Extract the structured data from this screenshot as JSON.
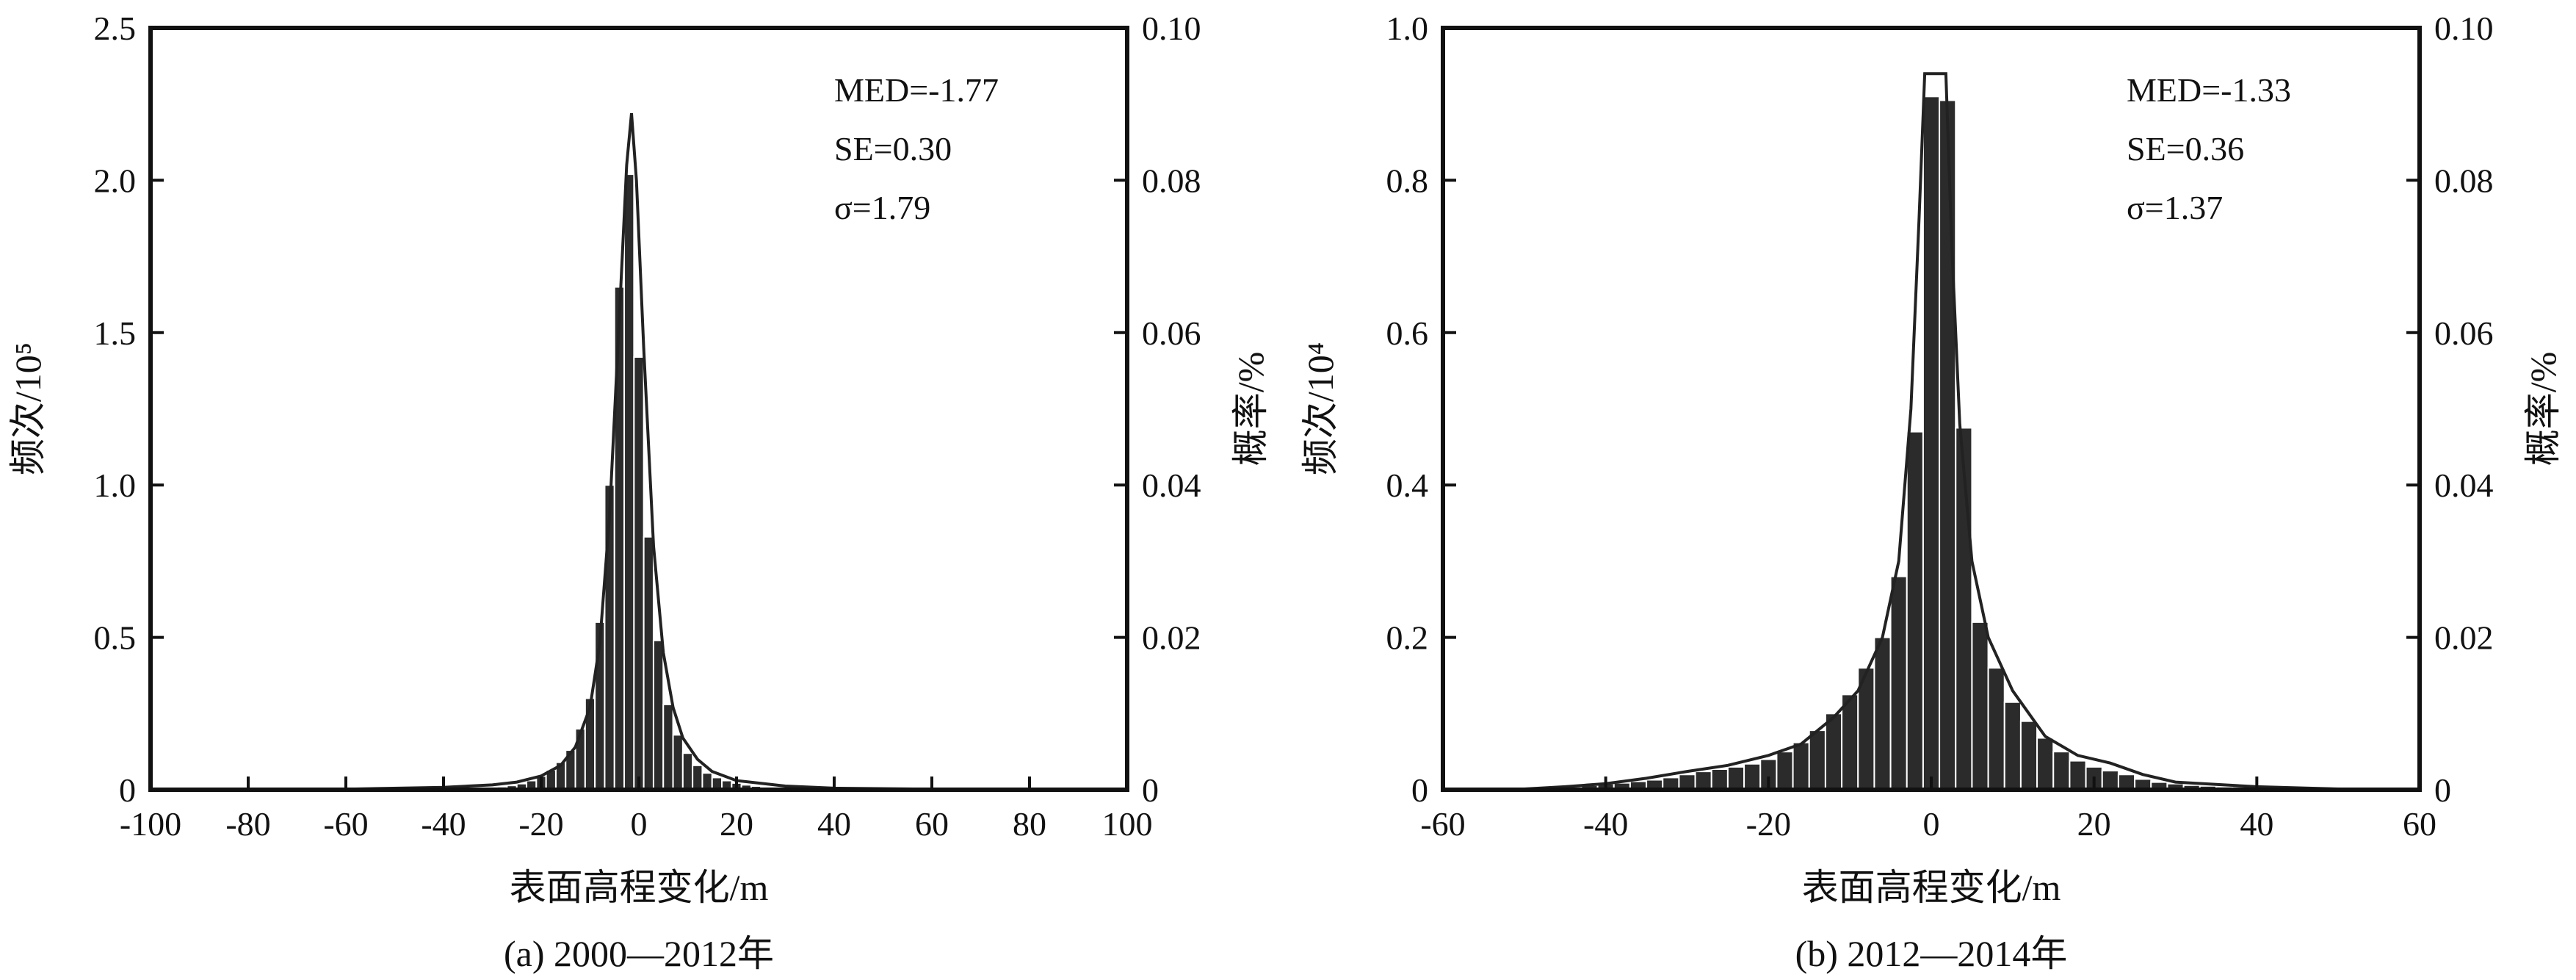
{
  "chart_data": [
    {
      "type": "bar",
      "panel": "a",
      "caption": "(a) 2000—2012年",
      "xlabel": "表面高程变化/m",
      "ylabel": "频次/10⁵",
      "ylabel_right": "概率/%",
      "xlim": [
        -100,
        100
      ],
      "ylim": [
        0,
        2.5
      ],
      "ylim_right": [
        0,
        0.1
      ],
      "x_ticks": [
        "-100",
        "-80",
        "-60",
        "-40",
        "-20",
        "0",
        "20",
        "40",
        "60",
        "80",
        "100"
      ],
      "y_ticks": [
        "0",
        "0.5",
        "1.0",
        "1.5",
        "2.0",
        "2.5"
      ],
      "y_right_ticks": [
        "0",
        "0.02",
        "0.04",
        "0.06",
        "0.08",
        "0.10"
      ],
      "stats": [
        "MED=-1.77",
        "SE=0.30",
        "σ=1.79"
      ],
      "bin_width": 2,
      "bins": [
        {
          "x": -40,
          "y": 0.003
        },
        {
          "x": -38,
          "y": 0.003
        },
        {
          "x": -36,
          "y": 0.004
        },
        {
          "x": -34,
          "y": 0.005
        },
        {
          "x": -32,
          "y": 0.006
        },
        {
          "x": -30,
          "y": 0.008
        },
        {
          "x": -28,
          "y": 0.01
        },
        {
          "x": -26,
          "y": 0.014
        },
        {
          "x": -24,
          "y": 0.02
        },
        {
          "x": -22,
          "y": 0.03
        },
        {
          "x": -20,
          "y": 0.045
        },
        {
          "x": -18,
          "y": 0.065
        },
        {
          "x": -16,
          "y": 0.09
        },
        {
          "x": -14,
          "y": 0.13
        },
        {
          "x": -12,
          "y": 0.2
        },
        {
          "x": -10,
          "y": 0.3
        },
        {
          "x": -8,
          "y": 0.55
        },
        {
          "x": -6,
          "y": 1.0
        },
        {
          "x": -4,
          "y": 1.65
        },
        {
          "x": -2,
          "y": 2.02
        },
        {
          "x": 0,
          "y": 1.42
        },
        {
          "x": 2,
          "y": 0.83
        },
        {
          "x": 4,
          "y": 0.49
        },
        {
          "x": 6,
          "y": 0.28
        },
        {
          "x": 8,
          "y": 0.18
        },
        {
          "x": 10,
          "y": 0.12
        },
        {
          "x": 12,
          "y": 0.08
        },
        {
          "x": 14,
          "y": 0.055
        },
        {
          "x": 16,
          "y": 0.04
        },
        {
          "x": 18,
          "y": 0.03
        },
        {
          "x": 20,
          "y": 0.022
        },
        {
          "x": 22,
          "y": 0.016
        },
        {
          "x": 24,
          "y": 0.012
        },
        {
          "x": 26,
          "y": 0.009
        },
        {
          "x": 28,
          "y": 0.007
        },
        {
          "x": 30,
          "y": 0.005
        },
        {
          "x": 32,
          "y": 0.004
        },
        {
          "x": 34,
          "y": 0.003
        },
        {
          "x": 36,
          "y": 0.003
        },
        {
          "x": 38,
          "y": 0.002
        }
      ],
      "curve": [
        [
          -100,
          0
        ],
        [
          -60,
          0.002
        ],
        [
          -40,
          0.008
        ],
        [
          -30,
          0.016
        ],
        [
          -25,
          0.025
        ],
        [
          -20,
          0.045
        ],
        [
          -16,
          0.08
        ],
        [
          -13,
          0.14
        ],
        [
          -10,
          0.27
        ],
        [
          -8,
          0.48
        ],
        [
          -6,
          0.9
        ],
        [
          -4,
          1.55
        ],
        [
          -2.5,
          2.05
        ],
        [
          -1.5,
          2.22
        ],
        [
          -0.5,
          2.0
        ],
        [
          1,
          1.45
        ],
        [
          3,
          0.8
        ],
        [
          5,
          0.45
        ],
        [
          7,
          0.27
        ],
        [
          9,
          0.17
        ],
        [
          12,
          0.1
        ],
        [
          15,
          0.06
        ],
        [
          20,
          0.03
        ],
        [
          30,
          0.012
        ],
        [
          40,
          0.005
        ],
        [
          60,
          0.002
        ],
        [
          100,
          0
        ]
      ]
    },
    {
      "type": "bar",
      "panel": "b",
      "caption": "(b) 2012—2014年",
      "xlabel": "表面高程变化/m",
      "ylabel": "频次/10⁴",
      "ylabel_right": "概率/%",
      "xlim": [
        -60,
        60
      ],
      "ylim": [
        0,
        1.0
      ],
      "ylim_right": [
        0,
        0.1
      ],
      "x_ticks": [
        "-60",
        "-40",
        "-20",
        "0",
        "20",
        "40",
        "60"
      ],
      "y_ticks": [
        "0",
        "0.2",
        "0.4",
        "0.6",
        "0.8",
        "1.0"
      ],
      "y_right_ticks": [
        "0",
        "0.02",
        "0.04",
        "0.06",
        "0.08",
        "0.10"
      ],
      "stats": [
        "MED=-1.33",
        "SE=0.36",
        "σ=1.37"
      ],
      "bin_width": 2,
      "bins": [
        {
          "x": -44,
          "y": 0.004
        },
        {
          "x": -42,
          "y": 0.006
        },
        {
          "x": -40,
          "y": 0.008
        },
        {
          "x": -38,
          "y": 0.009
        },
        {
          "x": -36,
          "y": 0.011
        },
        {
          "x": -34,
          "y": 0.013
        },
        {
          "x": -32,
          "y": 0.016
        },
        {
          "x": -30,
          "y": 0.02
        },
        {
          "x": -28,
          "y": 0.024
        },
        {
          "x": -26,
          "y": 0.027
        },
        {
          "x": -24,
          "y": 0.03
        },
        {
          "x": -22,
          "y": 0.034
        },
        {
          "x": -20,
          "y": 0.04
        },
        {
          "x": -18,
          "y": 0.05
        },
        {
          "x": -16,
          "y": 0.062
        },
        {
          "x": -14,
          "y": 0.078
        },
        {
          "x": -12,
          "y": 0.1
        },
        {
          "x": -10,
          "y": 0.125
        },
        {
          "x": -8,
          "y": 0.16
        },
        {
          "x": -6,
          "y": 0.2
        },
        {
          "x": -4,
          "y": 0.28
        },
        {
          "x": -2,
          "y": 0.47
        },
        {
          "x": 0,
          "y": 0.91
        },
        {
          "x": 2,
          "y": 0.905
        },
        {
          "x": 4,
          "y": 0.475
        },
        {
          "x": 6,
          "y": 0.22
        },
        {
          "x": 8,
          "y": 0.16
        },
        {
          "x": 10,
          "y": 0.115
        },
        {
          "x": 12,
          "y": 0.09
        },
        {
          "x": 14,
          "y": 0.068
        },
        {
          "x": 16,
          "y": 0.05
        },
        {
          "x": 18,
          "y": 0.038
        },
        {
          "x": 20,
          "y": 0.03
        },
        {
          "x": 22,
          "y": 0.025
        },
        {
          "x": 24,
          "y": 0.02
        },
        {
          "x": 26,
          "y": 0.014
        },
        {
          "x": 28,
          "y": 0.01
        },
        {
          "x": 30,
          "y": 0.008
        },
        {
          "x": 32,
          "y": 0.006
        },
        {
          "x": 34,
          "y": 0.005
        },
        {
          "x": 36,
          "y": 0.004
        },
        {
          "x": 38,
          "y": 0.004
        },
        {
          "x": 40,
          "y": 0.003
        },
        {
          "x": 42,
          "y": 0.003
        },
        {
          "x": 44,
          "y": 0.002
        },
        {
          "x": 46,
          "y": 0.002
        },
        {
          "x": 48,
          "y": 0.002
        },
        {
          "x": 50,
          "y": 0.002
        }
      ],
      "curve": [
        [
          -60,
          0
        ],
        [
          -50,
          0.001
        ],
        [
          -45,
          0.004
        ],
        [
          -40,
          0.008
        ],
        [
          -35,
          0.015
        ],
        [
          -30,
          0.024
        ],
        [
          -25,
          0.032
        ],
        [
          -20,
          0.045
        ],
        [
          -16,
          0.06
        ],
        [
          -12,
          0.095
        ],
        [
          -9,
          0.13
        ],
        [
          -6,
          0.2
        ],
        [
          -4,
          0.3
        ],
        [
          -2.5,
          0.5
        ],
        [
          -1.5,
          0.75
        ],
        [
          -0.8,
          0.94
        ],
        [
          1.8,
          0.94
        ],
        [
          2.5,
          0.72
        ],
        [
          3.5,
          0.48
        ],
        [
          5,
          0.3
        ],
        [
          7,
          0.2
        ],
        [
          10,
          0.13
        ],
        [
          14,
          0.07
        ],
        [
          18,
          0.045
        ],
        [
          22,
          0.035
        ],
        [
          26,
          0.02
        ],
        [
          30,
          0.01
        ],
        [
          40,
          0.004
        ],
        [
          50,
          0.001
        ],
        [
          60,
          0
        ]
      ]
    }
  ]
}
